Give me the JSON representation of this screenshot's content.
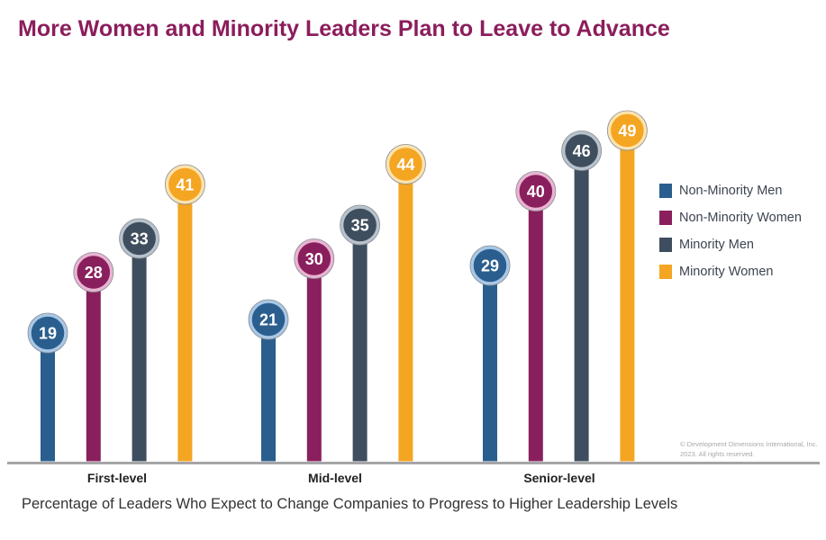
{
  "title": "More Women and Minority Leaders Plan to Leave to Advance",
  "copyright": "© Development Dimensions International, Inc. 2023. All rights reserved.",
  "chart_data": {
    "type": "bar",
    "title": "More Women and Minority Leaders Plan to Leave to Advance",
    "xlabel": "Percentage of Leaders Who Expect to Change Companies to Progress to Higher Leadership Levels",
    "ylabel": "",
    "categories": [
      "First-level",
      "Mid-level",
      "Senior-level"
    ],
    "series": [
      {
        "name": "Non-Minority Men",
        "color": "#2a5e8e",
        "ring": "#a9c7e6",
        "values": [
          19,
          21,
          29
        ]
      },
      {
        "name": "Non-Minority Women",
        "color": "#8a1f5d",
        "ring": "#e9b4d2",
        "values": [
          28,
          30,
          40
        ]
      },
      {
        "name": "Minority Men",
        "color": "#3e4e5e",
        "ring": "#b8c2cc",
        "values": [
          33,
          35,
          46
        ]
      },
      {
        "name": "Minority Women",
        "color": "#f4a522",
        "ring": "#fde3ad",
        "values": [
          41,
          44,
          49
        ]
      }
    ],
    "grid": false,
    "legend": "right",
    "data_labels": true
  }
}
